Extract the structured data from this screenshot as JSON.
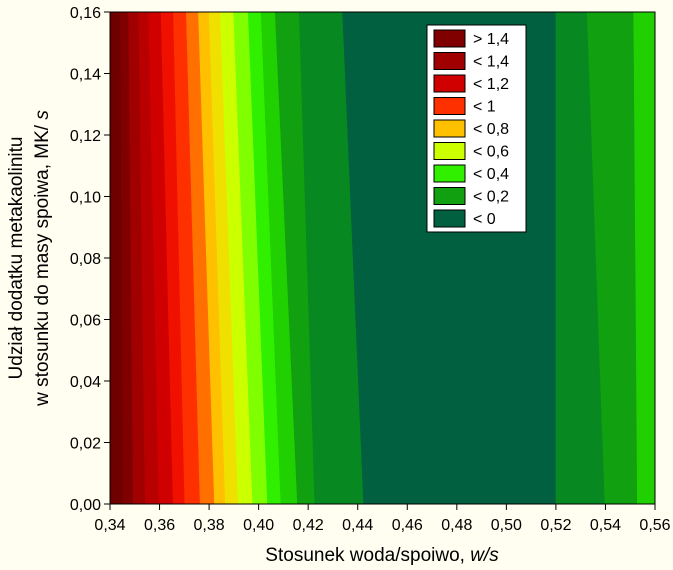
{
  "chart_data": {
    "type": "heatmap",
    "subtype": "filled-contour",
    "xlabel_prefix": "Stosunek woda/spoiwo, ",
    "xlabel_italic": "w/s",
    "ylabel_line1": "Udział dodatku metakaolinitu",
    "ylabel_line2_prefix": "w stosunku do masy spoiwa, MK/",
    "ylabel_line2_italic": " s",
    "xlim": [
      0.34,
      0.56
    ],
    "ylim": [
      0.0,
      0.16
    ],
    "x_ticks": [
      0.34,
      0.36,
      0.38,
      0.4,
      0.42,
      0.44,
      0.46,
      0.48,
      0.5,
      0.52,
      0.54,
      0.56
    ],
    "x_tick_labels": [
      "0,34",
      "0,36",
      "0,38",
      "0,40",
      "0,42",
      "0,44",
      "0,46",
      "0,48",
      "0,50",
      "0,52",
      "0,54",
      "0,56"
    ],
    "y_ticks": [
      0.0,
      0.02,
      0.04,
      0.06,
      0.08,
      0.1,
      0.12,
      0.14,
      0.16
    ],
    "y_tick_labels": [
      "0,00",
      "0,02",
      "0,04",
      "0,06",
      "0,08",
      "0,10",
      "0,12",
      "0,14",
      "0,16"
    ],
    "legend_position": "top-right",
    "legend": [
      {
        "label": "> 1,4",
        "color": "#800000"
      },
      {
        "label": "< 1,4",
        "color": "#A00000"
      },
      {
        "label": "< 1,2",
        "color": "#D00000"
      },
      {
        "label": "< 1",
        "color": "#FF3000"
      },
      {
        "label": "< 0,8",
        "color": "#FFC000"
      },
      {
        "label": "< 0,6",
        "color": "#CCFF00"
      },
      {
        "label": "< 0,4",
        "color": "#30F000"
      },
      {
        "label": "< 0,2",
        "color": "#10A010"
      },
      {
        "label": "< 0",
        "color": "#006040"
      }
    ],
    "bands": [
      {
        "color": "#6E0000",
        "x_top": 0.34,
        "x_bottom": 0.34
      },
      {
        "color": "#800000",
        "x_top": 0.3442,
        "x_bottom": 0.3453
      },
      {
        "color": "#A00000",
        "x_top": 0.3475,
        "x_bottom": 0.3494
      },
      {
        "color": "#B80000",
        "x_top": 0.3516,
        "x_bottom": 0.3542
      },
      {
        "color": "#D00000",
        "x_top": 0.3556,
        "x_bottom": 0.3598
      },
      {
        "color": "#F01000",
        "x_top": 0.3606,
        "x_bottom": 0.3655
      },
      {
        "color": "#FF3000",
        "x_top": 0.3656,
        "x_bottom": 0.3702
      },
      {
        "color": "#FF7000",
        "x_top": 0.3708,
        "x_bottom": 0.3764
      },
      {
        "color": "#FFC000",
        "x_top": 0.3757,
        "x_bottom": 0.3822
      },
      {
        "color": "#F0E000",
        "x_top": 0.38,
        "x_bottom": 0.3866
      },
      {
        "color": "#CCFF00",
        "x_top": 0.3845,
        "x_bottom": 0.3918
      },
      {
        "color": "#80FF00",
        "x_top": 0.3899,
        "x_bottom": 0.3976
      },
      {
        "color": "#30F000",
        "x_top": 0.3958,
        "x_bottom": 0.4036
      },
      {
        "color": "#20D000",
        "x_top": 0.401,
        "x_bottom": 0.409
      },
      {
        "color": "#10A010",
        "x_top": 0.4067,
        "x_bottom": 0.4157
      },
      {
        "color": "#088820",
        "x_top": 0.4164,
        "x_bottom": 0.4227
      },
      {
        "color": "#006040",
        "x_top": 0.4339,
        "x_bottom": 0.4424
      },
      {
        "color": "#088820",
        "x_top": 0.52,
        "x_bottom": 0.52
      },
      {
        "color": "#10A010",
        "x_top": 0.5326,
        "x_bottom": 0.5398
      },
      {
        "color": "#20D000",
        "x_top": 0.5514,
        "x_bottom": 0.5529
      }
    ]
  }
}
